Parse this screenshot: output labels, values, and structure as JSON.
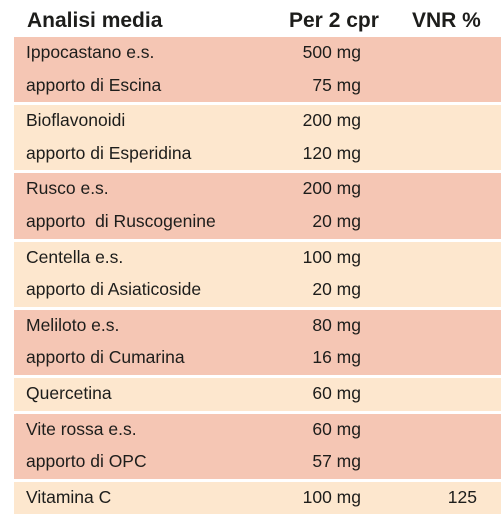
{
  "header": {
    "name": "Analisi media",
    "qty": "Per  2 cpr",
    "vnr": "VNR %"
  },
  "groups": [
    {
      "tone": "a",
      "rows": [
        {
          "name": "Ippocastano e.s.",
          "qty": "500 mg",
          "vnr": ""
        },
        {
          "name": "apporto di Escina",
          "qty": "75 mg",
          "vnr": ""
        }
      ]
    },
    {
      "tone": "b",
      "rows": [
        {
          "name": "Bioflavonoidi",
          "qty": "200 mg",
          "vnr": ""
        },
        {
          "name": "apporto di Esperidina",
          "qty": "120 mg",
          "vnr": ""
        }
      ]
    },
    {
      "tone": "a",
      "rows": [
        {
          "name": "Rusco e.s.",
          "qty": "200 mg",
          "vnr": ""
        },
        {
          "name": "apporto  di Ruscogenine",
          "qty": "20 mg",
          "vnr": ""
        }
      ]
    },
    {
      "tone": "b",
      "rows": [
        {
          "name": "Centella e.s.",
          "qty": "100 mg",
          "vnr": ""
        },
        {
          "name": "apporto di Asiaticoside",
          "qty": "20 mg",
          "vnr": ""
        }
      ]
    },
    {
      "tone": "a",
      "rows": [
        {
          "name": "Meliloto e.s.",
          "qty": "80 mg",
          "vnr": ""
        },
        {
          "name": "apporto di Cumarina",
          "qty": "16 mg",
          "vnr": ""
        }
      ]
    },
    {
      "tone": "b",
      "rows": [
        {
          "name": "Quercetina",
          "qty": "60 mg",
          "vnr": ""
        }
      ]
    },
    {
      "tone": "a",
      "rows": [
        {
          "name": "Vite rossa e.s.",
          "qty": "60 mg",
          "vnr": ""
        },
        {
          "name": "apporto di OPC",
          "qty": "57 mg",
          "vnr": ""
        }
      ]
    },
    {
      "tone": "b",
      "rows": [
        {
          "name": "Vitamina C",
          "qty": "100 mg",
          "vnr": "125"
        }
      ]
    }
  ]
}
